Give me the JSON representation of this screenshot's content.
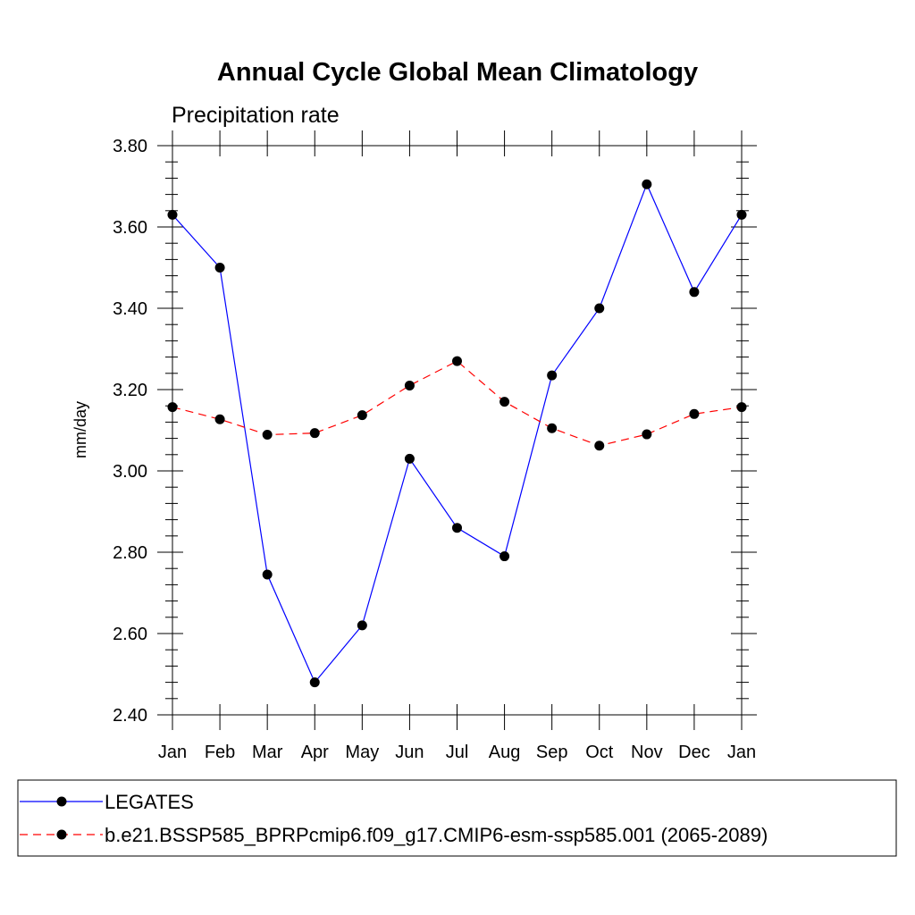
{
  "chart_data": {
    "type": "line",
    "title": "Annual Cycle Global Mean Climatology",
    "subtitle": "Precipitation rate",
    "ylabel": "mm/day",
    "xlabel": "",
    "categories": [
      "Jan",
      "Feb",
      "Mar",
      "Apr",
      "May",
      "Jun",
      "Jul",
      "Aug",
      "Sep",
      "Oct",
      "Nov",
      "Dec",
      "Jan"
    ],
    "ylim": [
      2.4,
      3.8
    ],
    "yticks": [
      "2.40",
      "2.60",
      "2.80",
      "3.00",
      "3.20",
      "3.40",
      "3.60",
      "3.80"
    ],
    "series": [
      {
        "name": "LEGATES",
        "color": "#0000ff",
        "dash": "solid",
        "values": [
          3.63,
          3.5,
          2.745,
          2.48,
          2.62,
          3.03,
          2.86,
          2.79,
          3.235,
          3.4,
          3.705,
          3.44,
          3.63
        ]
      },
      {
        "name": "b.e21.BSSP585_BPRPcmip6.f09_g17.CMIP6-esm-ssp585.001 (2065-2089)",
        "color": "#ff0000",
        "dash": "dashed",
        "values": [
          3.157,
          3.127,
          3.089,
          3.093,
          3.137,
          3.21,
          3.27,
          3.17,
          3.105,
          3.062,
          3.09,
          3.14,
          3.157
        ]
      }
    ],
    "legend_position": "bottom"
  }
}
